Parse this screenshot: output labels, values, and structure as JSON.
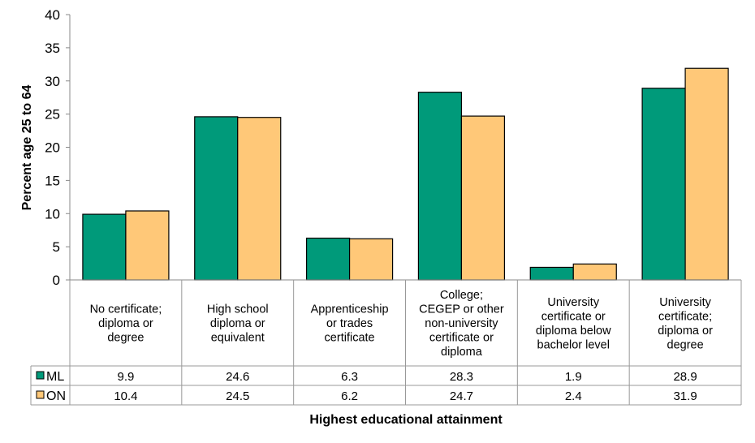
{
  "chart_data": {
    "type": "bar",
    "title": "",
    "xlabel": "Highest educational attainment",
    "ylabel": "Percent  age 25 to 64",
    "ylim": [
      0,
      40
    ],
    "yticks": [
      0,
      5,
      10,
      15,
      20,
      25,
      30,
      35,
      40
    ],
    "categories": [
      [
        "No certificate;",
        "diploma or",
        "degree"
      ],
      [
        "High school",
        "diploma or",
        "equivalent"
      ],
      [
        "Apprenticeship",
        "or trades",
        "certificate"
      ],
      [
        "College;",
        "CEGEP or other",
        "non-university",
        "certificate or",
        "diploma"
      ],
      [
        "University",
        "certificate or",
        "diploma below",
        "bachelor level"
      ],
      [
        "University",
        "certificate;",
        "diploma or",
        "degree"
      ]
    ],
    "series": [
      {
        "name": "ML",
        "color": "#009a7a",
        "values": [
          9.9,
          24.6,
          6.3,
          28.3,
          1.9,
          28.9
        ],
        "labels": [
          "9.9",
          "24.6",
          "6.3",
          "28.3",
          "1.9",
          "28.9"
        ]
      },
      {
        "name": "ON",
        "color": "#ffc878",
        "values": [
          10.4,
          24.5,
          6.2,
          24.7,
          2.4,
          31.9
        ],
        "labels": [
          "10.4",
          "24.5",
          "6.2",
          "24.7",
          "2.4",
          "31.9"
        ]
      }
    ],
    "legend": "data-table",
    "grid": false
  }
}
